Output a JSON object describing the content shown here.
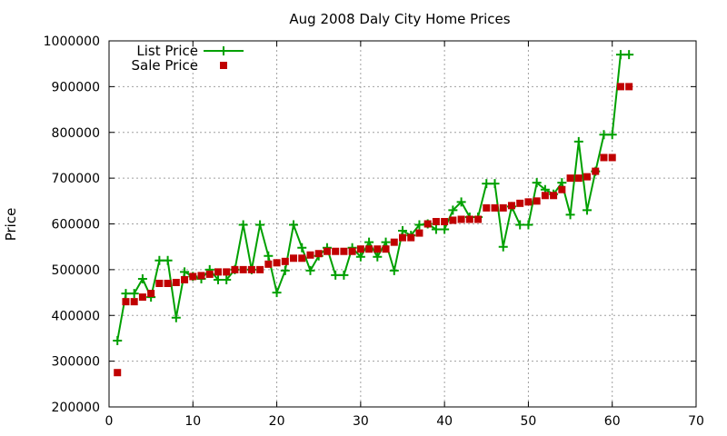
{
  "chart_data": {
    "type": "line",
    "title": "Aug 2008 Daly City Home Prices",
    "xlabel": "",
    "ylabel": "Price",
    "xlim": [
      0,
      70
    ],
    "ylim": [
      200000,
      1000000
    ],
    "x_ticks": [
      0,
      10,
      20,
      30,
      40,
      50,
      60,
      70
    ],
    "y_ticks": [
      200000,
      300000,
      400000,
      500000,
      600000,
      700000,
      800000,
      900000,
      1000000
    ],
    "grid": true,
    "legend_position": "top-left",
    "x": [
      1,
      2,
      3,
      4,
      5,
      6,
      7,
      8,
      9,
      10,
      11,
      12,
      13,
      14,
      15,
      16,
      17,
      18,
      19,
      20,
      21,
      22,
      23,
      24,
      25,
      26,
      27,
      28,
      29,
      30,
      31,
      32,
      33,
      34,
      35,
      36,
      37,
      38,
      39,
      40,
      41,
      42,
      43,
      44,
      45,
      46,
      47,
      48,
      49,
      50,
      51,
      52,
      53,
      54,
      55,
      56,
      57,
      58,
      59,
      60,
      61,
      62
    ],
    "series": [
      {
        "name": "List Price",
        "color": "#00a000",
        "marker": "plus",
        "line": true,
        "values": [
          345000,
          448000,
          448000,
          480000,
          440000,
          520000,
          520000,
          395000,
          495000,
          485000,
          480000,
          500000,
          478000,
          478000,
          500000,
          598000,
          500000,
          598000,
          530000,
          450000,
          498000,
          598000,
          548000,
          498000,
          530000,
          548000,
          488000,
          488000,
          548000,
          528000,
          560000,
          528000,
          560000,
          498000,
          585000,
          575000,
          598000,
          600000,
          588000,
          588000,
          630000,
          648000,
          615000,
          615000,
          688000,
          688000,
          550000,
          638000,
          598000,
          598000,
          690000,
          675000,
          665000,
          690000,
          620000,
          780000,
          630000,
          715000,
          795000,
          795000,
          970000,
          970000
        ]
      },
      {
        "name": "Sale Price",
        "color": "#c00000",
        "marker": "square",
        "line": false,
        "values": [
          275000,
          430000,
          430000,
          440000,
          448000,
          470000,
          470000,
          472000,
          478000,
          485000,
          487000,
          490000,
          495000,
          495000,
          500000,
          500000,
          500000,
          500000,
          512000,
          515000,
          518000,
          525000,
          525000,
          532000,
          535000,
          540000,
          540000,
          540000,
          540000,
          545000,
          545000,
          545000,
          545000,
          560000,
          570000,
          570000,
          580000,
          600000,
          605000,
          605000,
          608000,
          610000,
          610000,
          610000,
          635000,
          635000,
          635000,
          640000,
          645000,
          648000,
          650000,
          662000,
          662000,
          675000,
          700000,
          700000,
          703000,
          715000,
          745000,
          745000,
          900000,
          900000
        ]
      }
    ]
  }
}
